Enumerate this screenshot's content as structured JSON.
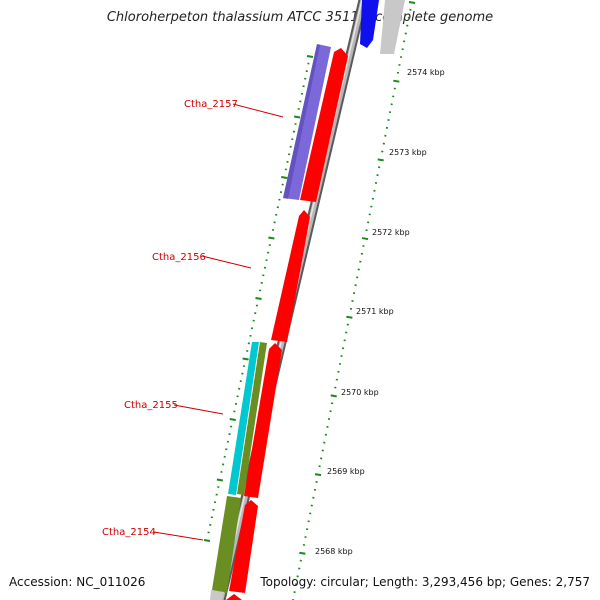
{
  "title": "Chloroherpeton thalassium ATCC 35110, complete genome",
  "footer": {
    "accession": "Accession: NC_011026",
    "summary": "Topology: circular; Length: 3,293,456 bp; Genes: 2,757"
  },
  "colors": {
    "label_red": "#cc0000",
    "tick_green": "#1a8a1a",
    "cds_red": "#ff0000",
    "cds_purple": "#7b68d9",
    "cds_blue": "#1010ee",
    "cds_cyan": "#00c8d0",
    "cds_olive": "#6b8e23",
    "backbone": "#8a8a8a"
  },
  "scale_labels": [
    "2574 kbp",
    "2573 kbp",
    "2572 kbp",
    "2571 kbp",
    "2570 kbp",
    "2569 kbp",
    "2568 kbp"
  ],
  "gene_labels": [
    "Ctha_2157",
    "Ctha_2156",
    "Ctha_2155",
    "Ctha_2154"
  ]
}
